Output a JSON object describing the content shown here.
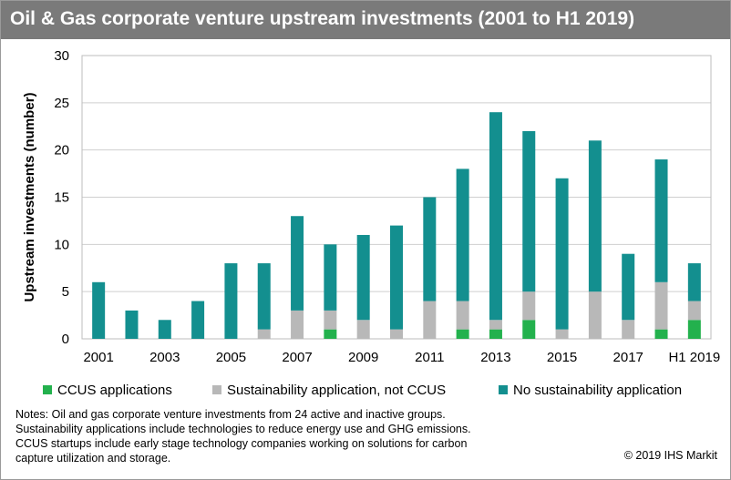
{
  "title": "Oil & Gas corporate venture upstream investments (2001 to H1 2019)",
  "notes": [
    "Notes: Oil and gas corporate venture investments from 24 active and inactive groups.",
    "Sustainability applications include technologies to reduce energy use and GHG emissions.",
    "CCUS startups include early stage technology companies working on solutions for carbon",
    "capture utilization and storage."
  ],
  "copyright": "© 2019 IHS Markit",
  "chart_data": {
    "type": "bar",
    "stacked": true,
    "title": "Oil & Gas corporate venture upstream investments (2001 to H1 2019)",
    "ylabel": "Upstream investments (number)",
    "xlabel": "",
    "ylim": [
      0,
      30
    ],
    "yticks": [
      0,
      5,
      10,
      15,
      20,
      25,
      30
    ],
    "grid": true,
    "legend_position": "bottom",
    "categories": [
      "2001",
      "2002",
      "2003",
      "2004",
      "2005",
      "2006",
      "2007",
      "2008",
      "2009",
      "2010",
      "2011",
      "2012",
      "2013",
      "2014",
      "2015",
      "2016",
      "2017",
      "2018",
      "H1 2019"
    ],
    "x_tick_labels": [
      "2001",
      "",
      "2003",
      "",
      "2005",
      "",
      "2007",
      "",
      "2009",
      "",
      "2011",
      "",
      "2013",
      "",
      "2015",
      "",
      "2017",
      "",
      "H1 2019"
    ],
    "series": [
      {
        "name": "CCUS applications",
        "color": "#23b14d",
        "values": [
          0,
          0,
          0,
          0,
          0,
          0,
          0,
          1,
          0,
          0,
          0,
          1,
          1,
          2,
          0,
          0,
          0,
          1,
          2
        ]
      },
      {
        "name": "Sustainability application, not CCUS",
        "color": "#b8b8b8",
        "values": [
          0,
          0,
          0,
          0,
          0,
          1,
          3,
          2,
          2,
          1,
          4,
          3,
          1,
          3,
          1,
          5,
          2,
          5,
          2
        ]
      },
      {
        "name": "No sustainability application",
        "color": "#138f8f",
        "values": [
          6,
          3,
          2,
          4,
          8,
          7,
          10,
          7,
          9,
          11,
          11,
          14,
          22,
          17,
          16,
          16,
          7,
          13,
          4
        ]
      }
    ]
  }
}
